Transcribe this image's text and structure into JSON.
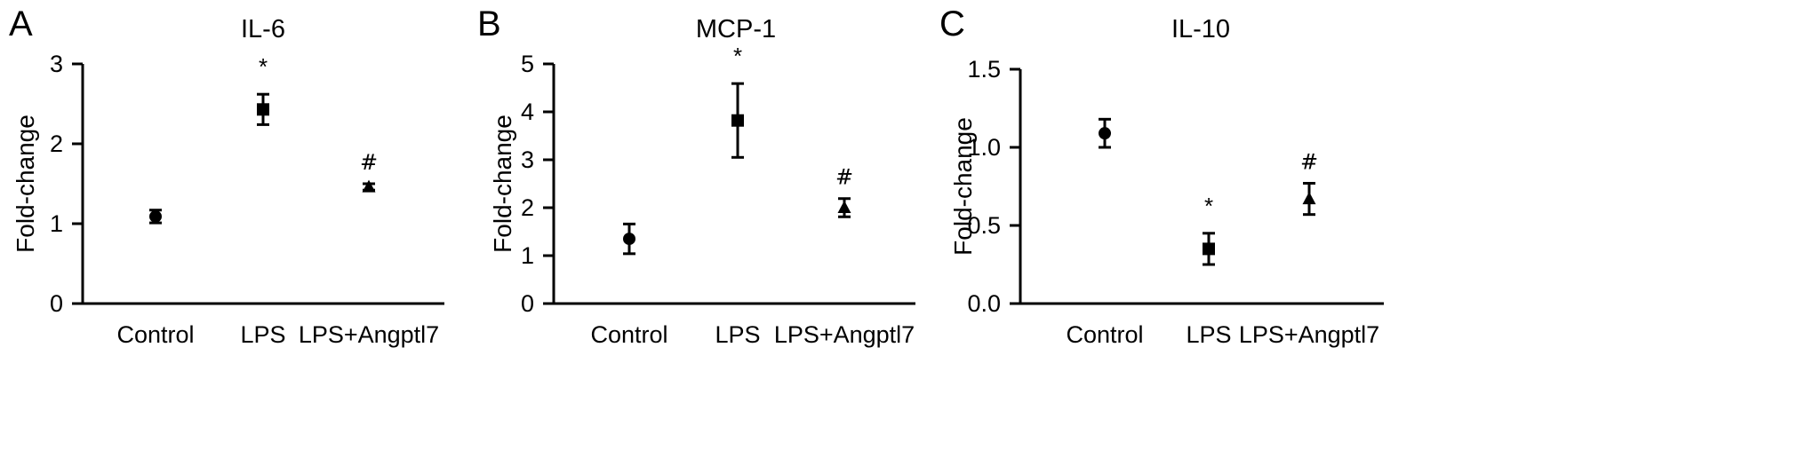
{
  "chart_data": [
    {
      "type": "scatter",
      "panel": "A",
      "title": "IL-6",
      "ylabel": "Fold-change",
      "ylim": [
        0,
        3
      ],
      "yticks": [
        "0",
        "1",
        "2",
        "3"
      ],
      "categories": [
        "Control",
        "LPS",
        "LPS+Angptl7"
      ],
      "values": [
        1.09,
        2.43,
        1.46
      ],
      "errors": [
        0.08,
        0.19,
        0.04
      ],
      "markers": [
        "circle",
        "square",
        "triangle"
      ],
      "annotations": [
        "",
        "*",
        "#"
      ]
    },
    {
      "type": "scatter",
      "panel": "B",
      "title": "MCP-1",
      "ylabel": "Fold-change",
      "ylim": [
        0,
        5
      ],
      "yticks": [
        "0",
        "1",
        "2",
        "3",
        "4",
        "5"
      ],
      "categories": [
        "Control",
        "LPS",
        "LPS+Angptl7"
      ],
      "values": [
        1.35,
        3.82,
        2.0
      ],
      "errors": [
        0.31,
        0.77,
        0.19
      ],
      "markers": [
        "circle",
        "square",
        "triangle"
      ],
      "annotations": [
        "",
        "*",
        "#"
      ]
    },
    {
      "type": "scatter",
      "panel": "C",
      "title": "IL-10",
      "ylabel": "Fold-change",
      "ylim": [
        0,
        1.5
      ],
      "yticks": [
        "0.0",
        "0.5",
        "1.0",
        "1.5"
      ],
      "categories": [
        "Control",
        "LPS",
        "LPS+Angptl7"
      ],
      "values": [
        1.09,
        0.35,
        0.67
      ],
      "errors": [
        0.09,
        0.1,
        0.1
      ],
      "markers": [
        "circle",
        "square",
        "triangle"
      ],
      "annotations": [
        "",
        "*",
        "#"
      ]
    }
  ]
}
